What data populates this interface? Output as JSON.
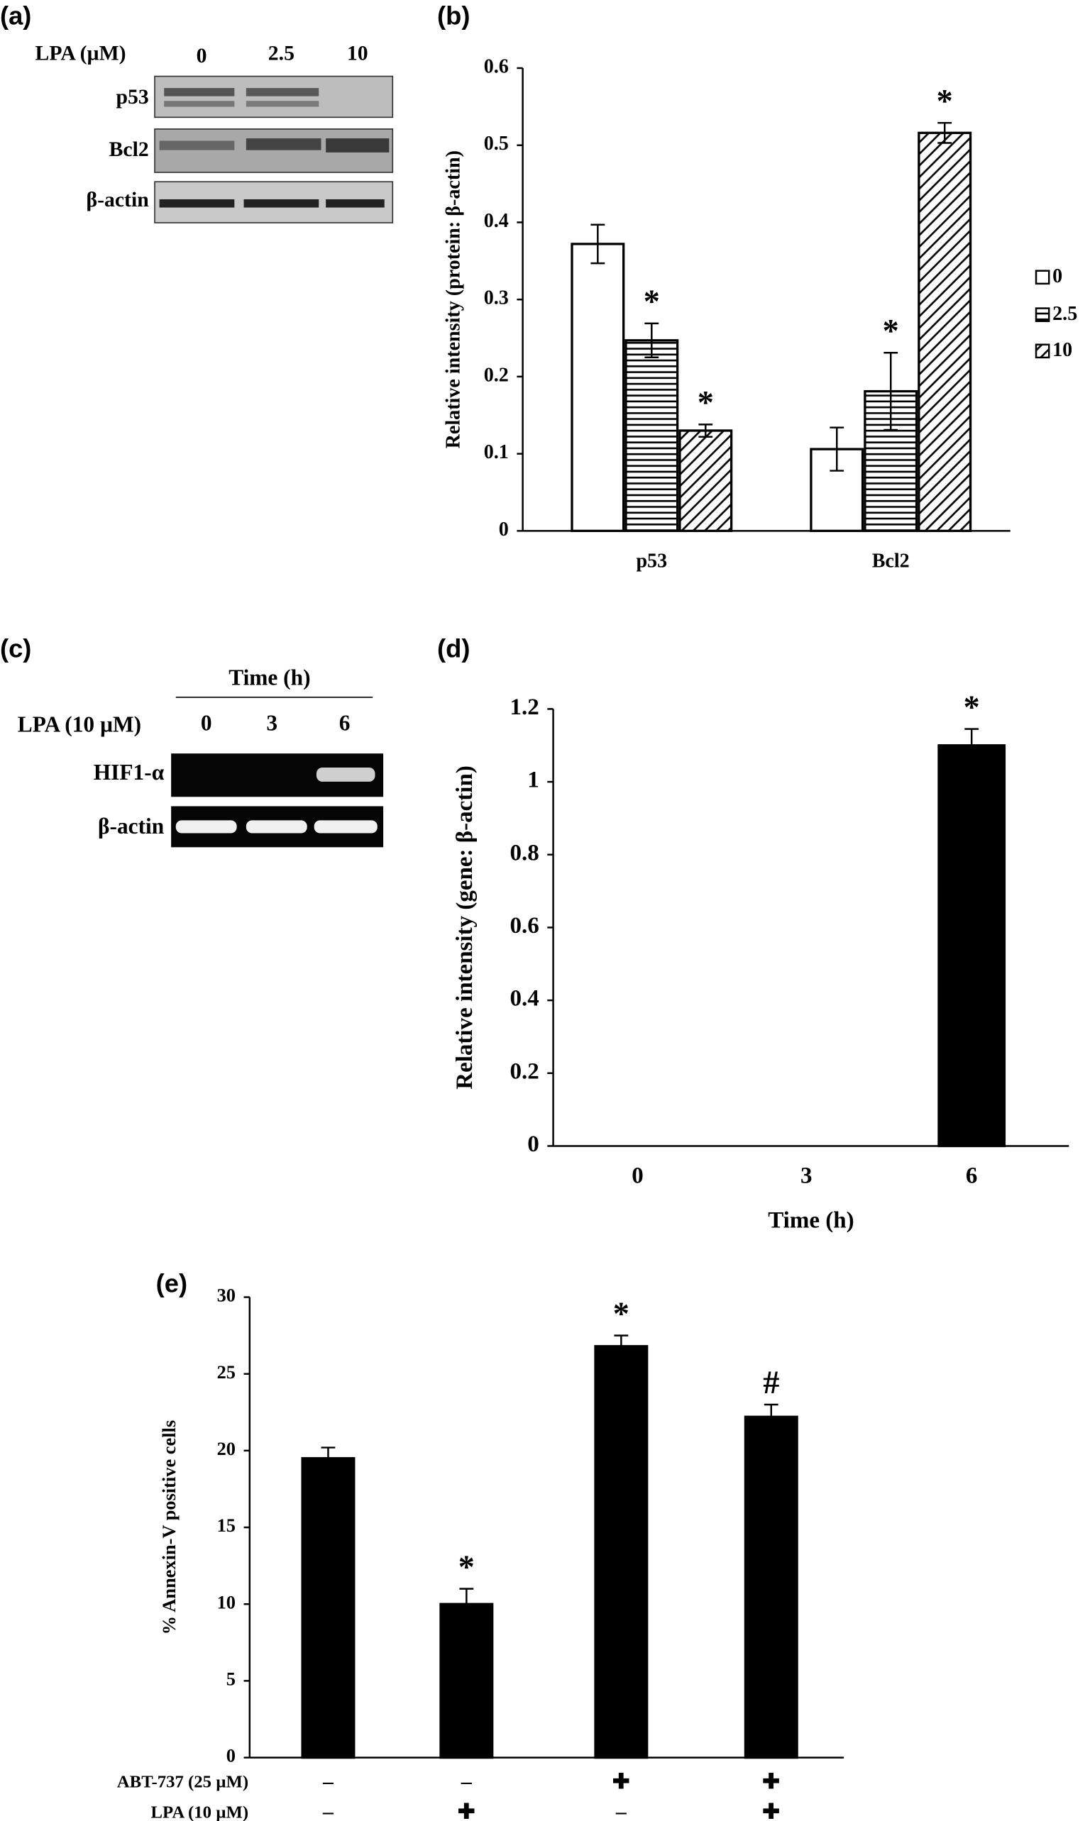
{
  "blots": [
    {
      "label": "(a)",
      "header": "LPA (µM)",
      "columns": [
        "0",
        "2.5",
        "10"
      ],
      "rows": [
        "p53",
        "Bcl2",
        "β-actin"
      ]
    },
    {
      "label": "(c)",
      "title": "Time (h)",
      "header": "LPA (10 µM)",
      "columns": [
        "0",
        "3",
        "6"
      ],
      "rows": [
        "HIF1-α",
        "β-actin"
      ]
    }
  ],
  "chart_data": [
    {
      "type": "bar",
      "label": "(b)",
      "ylabel": "Relative intensity (protein: β-actin)",
      "categories": [
        "p53",
        "Bcl2"
      ],
      "series": [
        {
          "name": "0",
          "pattern": "none",
          "color": "#ffffff",
          "values": [
            0.372,
            0.106
          ],
          "errors": [
            0.025,
            0.028
          ],
          "labels": [
            null,
            null
          ]
        },
        {
          "name": "2.5",
          "pattern": "horizontal",
          "color": "#000000",
          "values": [
            0.247,
            0.181
          ],
          "errors": [
            0.022,
            0.05
          ],
          "labels": [
            "*",
            "*"
          ]
        },
        {
          "name": "10",
          "pattern": "diagonal",
          "color": "#000000",
          "values": [
            0.13,
            0.516
          ],
          "errors": [
            0.008,
            0.013
          ],
          "labels": [
            "*",
            "*"
          ]
        }
      ],
      "ylim": [
        0,
        0.6
      ],
      "yticks": [
        0,
        0.1,
        0.2,
        0.3,
        0.4,
        0.5,
        0.6
      ],
      "legend": "right"
    },
    {
      "type": "bar",
      "label": "(d)",
      "ylabel": "Relative intensity (gene: β-actin)",
      "xlabel": "Time (h)",
      "categories": [
        "0",
        "3",
        "6"
      ],
      "values": [
        0,
        0,
        1.1
      ],
      "errors": [
        0,
        0,
        0.045
      ],
      "labels": [
        null,
        null,
        "*"
      ],
      "ylim": [
        0,
        1.2
      ],
      "yticks": [
        0,
        0.2,
        0.4,
        0.6,
        0.8,
        1,
        1.2
      ]
    },
    {
      "type": "bar",
      "label": "(e)",
      "ylabel": "% Annexin-V positive cells",
      "values": [
        19.5,
        10,
        26.8,
        22.2
      ],
      "errors": [
        0.7,
        1.0,
        0.7,
        0.8
      ],
      "labels": [
        null,
        "*",
        "*",
        "#"
      ],
      "conditions": [
        {
          "name": "ABT-737 (25 µM)",
          "values": [
            "–",
            "–",
            "✚",
            "✚"
          ]
        },
        {
          "name": "LPA (10 µM)",
          "values": [
            "–",
            "✚",
            "–",
            "✚"
          ]
        }
      ],
      "ylim": [
        0,
        30
      ],
      "yticks": [
        0,
        5,
        10,
        15,
        20,
        25,
        30
      ]
    }
  ]
}
